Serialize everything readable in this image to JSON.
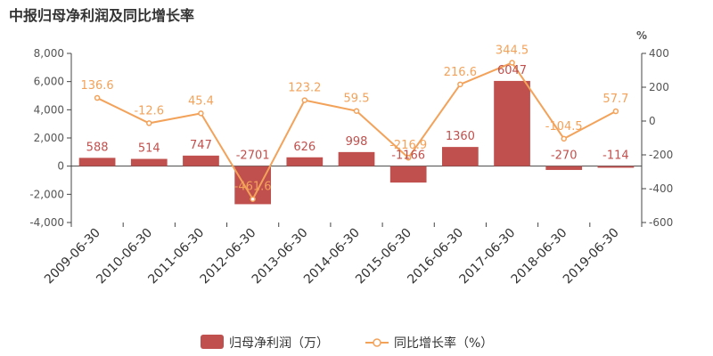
{
  "title": "中报归母净利润及同比增长率",
  "chart_data": {
    "type": "bar",
    "title": "中报归母净利润及同比增长率",
    "categories": [
      "2009-06-30",
      "2010-06-30",
      "2011-06-30",
      "2012-06-30",
      "2013-06-30",
      "2014-06-30",
      "2015-06-30",
      "2016-06-30",
      "2017-06-30",
      "2018-06-30",
      "2019-06-30"
    ],
    "series": [
      {
        "name": "归母净利润（万）",
        "type": "bar",
        "axis": "left",
        "color": "#c0504d",
        "values": [
          588,
          514,
          747,
          -2701,
          626,
          998,
          -1166,
          1360,
          6047,
          -270,
          -114
        ],
        "labels": [
          "588",
          "514",
          "747",
          "-2701",
          "626",
          "998",
          "-1166",
          "1360",
          "6047",
          "-270",
          "-114"
        ]
      },
      {
        "name": "同比增长率（%）",
        "type": "line",
        "axis": "right",
        "color": "#f3a25a",
        "values": [
          136.6,
          -12.6,
          45.4,
          -461.6,
          123.2,
          59.5,
          -216.9,
          216.6,
          344.5,
          -104.5,
          57.7
        ],
        "labels": [
          "136.6",
          "-12.6",
          "45.4",
          "-461.6",
          "123.2",
          "59.5",
          "-216.9",
          "216.6",
          "344.5",
          "-104.5",
          "57.7"
        ]
      }
    ],
    "y_left": {
      "min": -4000,
      "max": 8000,
      "ticks": [
        -4000,
        -2000,
        0,
        2000,
        4000,
        6000,
        8000
      ],
      "tick_labels": [
        "-4,000",
        "-2,000",
        "0",
        "2,000",
        "4,000",
        "6,000",
        "8,000"
      ]
    },
    "y_right": {
      "min": -600,
      "max": 400,
      "ticks": [
        -600,
        -400,
        -200,
        0,
        200,
        400
      ],
      "tick_labels": [
        "-600",
        "-400",
        "-200",
        "0",
        "200",
        "400"
      ],
      "unit": "%"
    },
    "legend_position": "bottom-center",
    "grid": false
  }
}
